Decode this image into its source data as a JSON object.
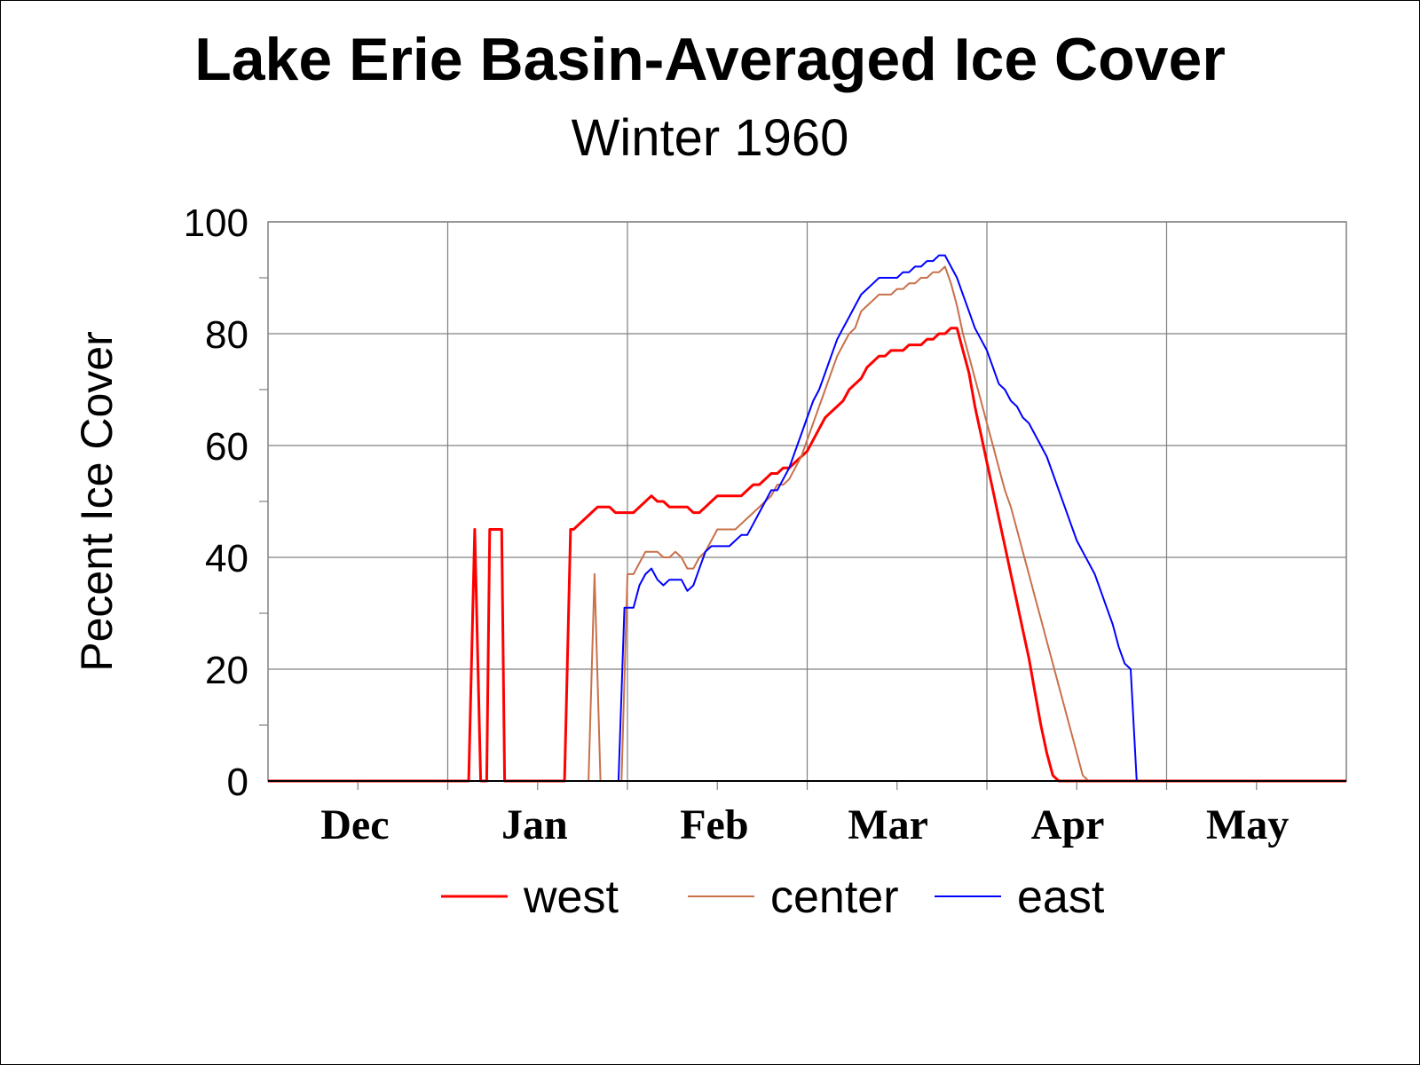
{
  "chart_data": {
    "type": "line",
    "title": "Lake Erie Basin-Averaged Ice Cover",
    "subtitle": "Winter 1960",
    "xlabel": "",
    "ylabel": "Pecent Ice Cover",
    "ylim": [
      0,
      100
    ],
    "yticks": [
      0,
      20,
      40,
      60,
      80,
      100
    ],
    "xlim": [
      0,
      180
    ],
    "month_labels": [
      "Dec",
      "Jan",
      "Feb",
      "Mar",
      "Apr",
      "May"
    ],
    "month_label_x": [
      14.5,
      44.5,
      74.5,
      103.5,
      133.5,
      163.5
    ],
    "grid": true,
    "legend_position": "bottom",
    "series": [
      {
        "name": "west",
        "color": "#ff0000",
        "x": [
          0,
          33.5,
          34.5,
          35.5,
          36.5,
          37,
          37.5,
          38.5,
          39,
          39.5,
          40.5,
          49.5,
          50.5,
          51,
          52,
          53,
          54,
          55,
          56,
          57,
          58,
          59,
          60,
          61,
          62,
          63,
          64,
          65,
          66,
          67,
          68,
          69,
          70,
          71,
          72,
          73,
          74,
          75,
          76,
          77,
          78,
          79,
          80,
          81,
          82,
          83,
          84,
          85,
          86,
          87,
          88,
          89,
          90,
          91,
          92,
          93,
          94,
          95,
          96,
          97,
          98,
          99,
          100,
          101,
          102,
          103,
          104,
          105,
          106,
          107,
          108,
          109,
          110,
          111,
          112,
          113,
          114,
          115,
          116,
          117,
          118,
          119,
          120,
          121,
          122,
          123,
          124,
          125,
          126,
          127,
          128,
          129,
          130,
          131,
          132,
          133,
          134,
          135,
          136,
          137,
          138,
          180
        ],
        "values": [
          0,
          0,
          45,
          0,
          0,
          45,
          45,
          45,
          45,
          0,
          0,
          0,
          45,
          45,
          46,
          47,
          48,
          49,
          49,
          49,
          48,
          48,
          48,
          48,
          49,
          50,
          51,
          50,
          50,
          49,
          49,
          49,
          49,
          48,
          48,
          49,
          50,
          51,
          51,
          51,
          51,
          51,
          52,
          53,
          53,
          54,
          55,
          55,
          56,
          56,
          57,
          58,
          59,
          61,
          63,
          65,
          66,
          67,
          68,
          70,
          71,
          72,
          74,
          75,
          76,
          76,
          77,
          77,
          77,
          78,
          78,
          78,
          79,
          79,
          80,
          80,
          81,
          81,
          77,
          73,
          67,
          62,
          57,
          52,
          47,
          42,
          37,
          32,
          27,
          22,
          16,
          10,
          5,
          1,
          0,
          0,
          0,
          0,
          0,
          0,
          0,
          0
        ]
      },
      {
        "name": "center",
        "color": "#c8704a",
        "x": [
          0,
          53.5,
          54.5,
          55.5,
          59,
          60,
          61,
          62,
          63,
          64,
          65,
          66,
          67,
          68,
          69,
          70,
          71,
          72,
          73,
          74,
          75,
          76,
          77,
          78,
          79,
          80,
          81,
          82,
          83,
          84,
          85,
          86,
          87,
          88,
          89,
          90,
          91,
          92,
          93,
          94,
          95,
          96,
          97,
          98,
          99,
          100,
          101,
          102,
          103,
          104,
          105,
          106,
          107,
          108,
          109,
          110,
          111,
          112,
          113,
          114,
          115,
          116,
          117,
          118,
          119,
          120,
          121,
          122,
          123,
          124,
          125,
          126,
          127,
          128,
          129,
          130,
          131,
          132,
          133,
          134,
          135,
          136,
          137,
          138,
          139,
          180
        ],
        "values": [
          0,
          0,
          37,
          0,
          0,
          37,
          37,
          39,
          41,
          41,
          41,
          40,
          40,
          41,
          40,
          38,
          38,
          40,
          41,
          43,
          45,
          45,
          45,
          45,
          46,
          47,
          48,
          49,
          50,
          51,
          53,
          53,
          54,
          56,
          58,
          61,
          64,
          67,
          70,
          73,
          76,
          78,
          80,
          81,
          84,
          85,
          86,
          87,
          87,
          87,
          88,
          88,
          89,
          89,
          90,
          90,
          91,
          91,
          92,
          89,
          85,
          80,
          76,
          72,
          68,
          64,
          60,
          56,
          52,
          49,
          45,
          41,
          37,
          33,
          29,
          25,
          21,
          17,
          13,
          9,
          5,
          1,
          0,
          0,
          0,
          0
        ]
      },
      {
        "name": "east",
        "color": "#0000ff",
        "x": [
          0,
          58.5,
          59.5,
          60,
          61,
          62,
          63,
          64,
          65,
          66,
          67,
          68,
          69,
          70,
          71,
          72,
          73,
          74,
          75,
          76,
          77,
          78,
          79,
          80,
          81,
          82,
          83,
          84,
          85,
          86,
          87,
          88,
          89,
          90,
          91,
          92,
          93,
          94,
          95,
          96,
          97,
          98,
          99,
          100,
          101,
          102,
          103,
          104,
          105,
          106,
          107,
          108,
          109,
          110,
          111,
          112,
          113,
          114,
          115,
          116,
          117,
          118,
          119,
          120,
          121,
          122,
          123,
          124,
          125,
          126,
          127,
          128,
          129,
          130,
          131,
          132,
          133,
          134,
          135,
          136,
          137,
          138,
          139,
          140,
          141,
          142,
          143,
          144,
          145,
          146,
          147,
          180
        ],
        "values": [
          0,
          0,
          31,
          31,
          31,
          35,
          37,
          38,
          36,
          35,
          36,
          36,
          36,
          34,
          35,
          38,
          41,
          42,
          42,
          42,
          42,
          43,
          44,
          44,
          46,
          48,
          50,
          52,
          52,
          54,
          56,
          59,
          62,
          65,
          68,
          70,
          73,
          76,
          79,
          81,
          83,
          85,
          87,
          88,
          89,
          90,
          90,
          90,
          90,
          91,
          91,
          92,
          92,
          93,
          93,
          94,
          94,
          92,
          90,
          87,
          84,
          81,
          79,
          77,
          74,
          71,
          70,
          68,
          67,
          65,
          64,
          62,
          60,
          58,
          55,
          52,
          49,
          46,
          43,
          41,
          39,
          37,
          34,
          31,
          28,
          24,
          21,
          20,
          0,
          0,
          0,
          0
        ]
      }
    ]
  }
}
